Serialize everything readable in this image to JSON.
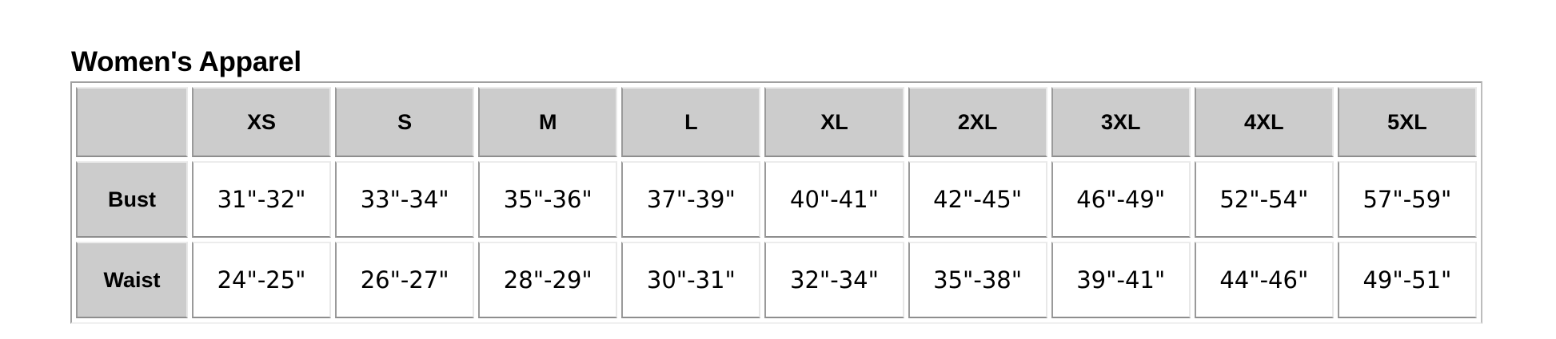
{
  "title": "Women's Apparel",
  "colors": {
    "header_bg": "#cccccc",
    "cell_bg": "#ffffff"
  },
  "table": {
    "corner": "",
    "sizes": [
      "XS",
      "S",
      "M",
      "L",
      "XL",
      "2XL",
      "3XL",
      "4XL",
      "5XL"
    ],
    "rows": [
      {
        "label": "Bust",
        "values": [
          "31\"-32\"",
          "33\"-34\"",
          "35\"-36\"",
          "37\"-39\"",
          "40\"-41\"",
          "42\"-45\"",
          "46\"-49\"",
          "52\"-54\"",
          "57\"-59\""
        ]
      },
      {
        "label": "Waist",
        "values": [
          "24\"-25\"",
          "26\"-27\"",
          "28\"-29\"",
          "30\"-31\"",
          "32\"-34\"",
          "35\"-38\"",
          "39\"-41\"",
          "44\"-46\"",
          "49\"-51\""
        ]
      }
    ]
  }
}
